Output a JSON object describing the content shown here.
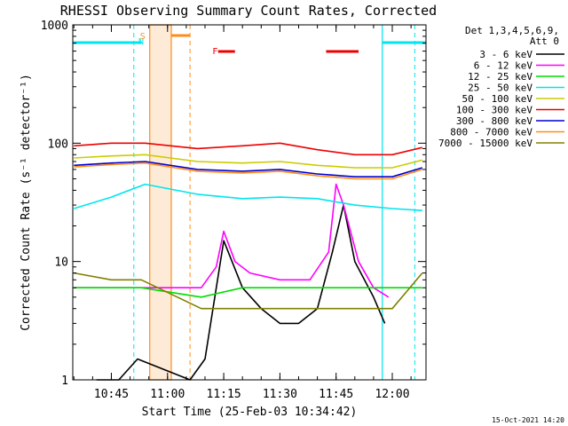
{
  "chart_data": {
    "type": "line",
    "title": "RHESSI Observing Summary Count Rates, Corrected",
    "xlabel": "Start Time (25-Feb-03 10:34:42)",
    "ylabel": "Corrected Count Rate (s⁻¹ detector⁻¹)",
    "y_scale": "log",
    "ylim": [
      1,
      1000
    ],
    "xlim": [
      "10:34:42",
      "12:09:00"
    ],
    "x_ticks": [
      "10:45",
      "11:00",
      "11:15",
      "11:30",
      "11:45",
      "12:00"
    ],
    "y_ticks": [
      "1",
      "10",
      "100",
      "1000"
    ],
    "legend_position": "right",
    "legend_header": [
      "Det 1,3,4,5,6,9,",
      "Att 0"
    ],
    "flags": [
      {
        "label": "N",
        "color": "#00e5ee"
      },
      {
        "label": "S",
        "color": "#ff8c1a"
      },
      {
        "label": "F",
        "color": "#ee0000"
      }
    ],
    "series": [
      {
        "name": "3 - 6 keV",
        "color": "#000000",
        "x": [
          "10:41",
          "10:47",
          "10:52",
          "11:06",
          "11:10",
          "11:15",
          "11:20",
          "11:25",
          "11:30",
          "11:35",
          "11:40",
          "11:44",
          "11:47",
          "11:50",
          "11:55",
          "11:58"
        ],
        "y": [
          1.0,
          1.0,
          1.5,
          1.0,
          1.5,
          15,
          6,
          4,
          3,
          3,
          4,
          12,
          30,
          10,
          5,
          3
        ]
      },
      {
        "name": "6 - 12 keV",
        "color": "#ff00ff",
        "x": [
          "10:35",
          "10:45",
          "10:52",
          "11:09",
          "11:13",
          "11:15",
          "11:18",
          "11:22",
          "11:30",
          "11:38",
          "11:43",
          "11:45",
          "11:47",
          "11:51",
          "11:55",
          "11:59"
        ],
        "y": [
          6,
          6,
          6,
          6,
          9,
          18,
          10,
          8,
          7,
          7,
          12,
          45,
          30,
          10,
          6,
          5
        ]
      },
      {
        "name": "12 - 25 keV",
        "color": "#00dd00",
        "x": [
          "10:35",
          "10:45",
          "10:53",
          "11:09",
          "11:20",
          "11:30",
          "11:40",
          "11:50",
          "12:00",
          "12:08"
        ],
        "y": [
          6,
          6,
          6,
          5,
          6,
          6,
          6,
          6,
          6,
          6
        ]
      },
      {
        "name": "25 - 50 keV",
        "color": "#00e5ee",
        "x": [
          "10:35",
          "10:45",
          "10:54",
          "11:08",
          "11:20",
          "11:30",
          "11:40",
          "11:50",
          "12:00",
          "12:08"
        ],
        "y": [
          28,
          35,
          45,
          37,
          34,
          35,
          34,
          30,
          28,
          27
        ]
      },
      {
        "name": "50 - 100 keV",
        "color": "#cccc00",
        "x": [
          "10:35",
          "10:45",
          "10:54",
          "11:08",
          "11:20",
          "11:30",
          "11:40",
          "11:50",
          "12:00",
          "12:08"
        ],
        "y": [
          75,
          78,
          80,
          70,
          68,
          70,
          65,
          62,
          62,
          72
        ]
      },
      {
        "name": "100 - 300 keV",
        "color": "#ee0000",
        "x": [
          "10:35",
          "10:45",
          "10:54",
          "11:08",
          "11:20",
          "11:30",
          "11:40",
          "11:50",
          "12:00",
          "12:08"
        ],
        "y": [
          95,
          100,
          100,
          90,
          95,
          100,
          88,
          80,
          80,
          92
        ]
      },
      {
        "name": "300 - 800 keV",
        "color": "#0000cc",
        "x": [
          "10:35",
          "10:45",
          "10:54",
          "11:08",
          "11:20",
          "11:30",
          "11:40",
          "11:50",
          "12:00",
          "12:08"
        ],
        "y": [
          65,
          68,
          70,
          60,
          58,
          60,
          55,
          52,
          52,
          62
        ]
      },
      {
        "name": "800 - 7000 keV",
        "color": "#ff8c1a",
        "x": [
          "10:35",
          "10:45",
          "10:54",
          "11:08",
          "11:20",
          "11:30",
          "11:40",
          "11:50",
          "12:00",
          "12:08"
        ],
        "y": [
          63,
          66,
          68,
          58,
          56,
          58,
          53,
          50,
          50,
          60
        ]
      },
      {
        "name": "7000 - 15000 keV",
        "color": "#808000",
        "x": [
          "10:35",
          "10:45",
          "10:53",
          "11:09",
          "11:20",
          "11:30",
          "11:40",
          "11:50",
          "12:00",
          "12:08"
        ],
        "y": [
          8,
          7,
          7,
          4,
          4,
          4,
          4,
          4,
          4,
          8
        ]
      }
    ]
  },
  "footer": {
    "timestamp": "15-Oct-2021 14:20"
  }
}
